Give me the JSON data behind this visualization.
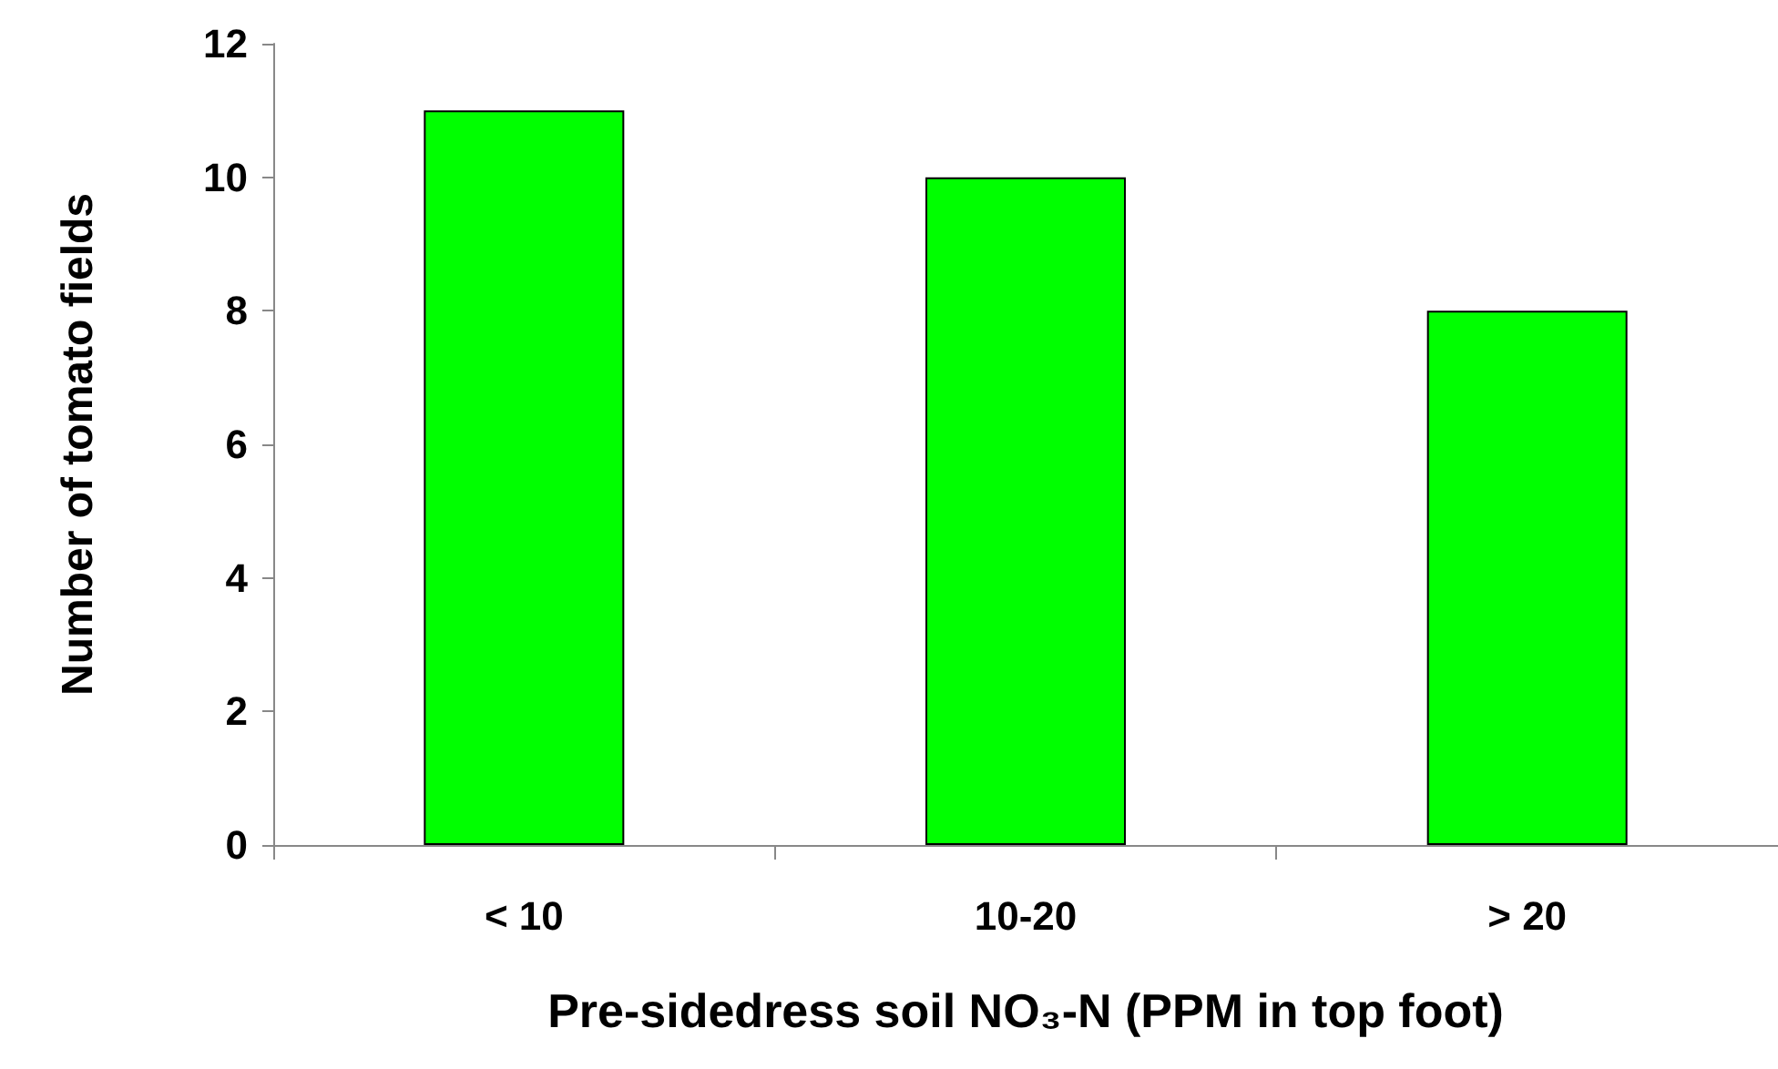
{
  "chart_data": {
    "type": "bar",
    "xlabel": "Pre-sidedress soil NO₃-N (PPM in top foot)",
    "ylabel": "Number of tomato fields",
    "categories": [
      "< 10",
      "10-20",
      "> 20"
    ],
    "values": [
      11,
      10,
      8
    ],
    "color": "#00ff00",
    "ylim": [
      0,
      12
    ],
    "yticks": [
      0,
      2,
      4,
      6,
      8,
      10,
      12
    ],
    "grid": false
  }
}
